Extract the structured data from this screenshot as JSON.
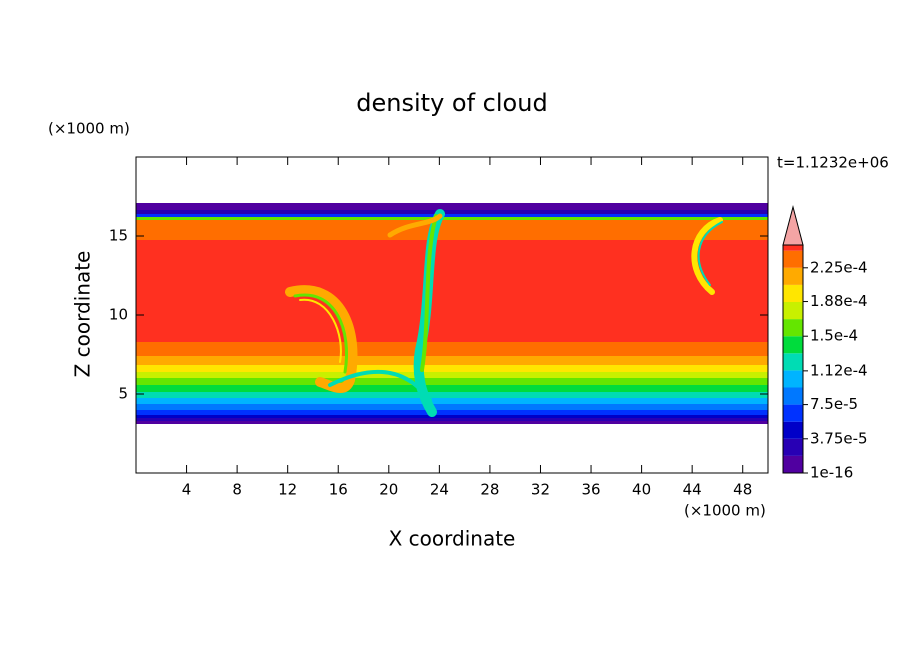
{
  "chart_data": {
    "type": "contour",
    "title": "density of cloud",
    "x_label": "X coordinate",
    "y_label": "Z coordinate",
    "x_unit": "(×1000 m)",
    "y_unit": "(×1000 m)",
    "annotation": "t=1.1232e+06",
    "xlim": [
      0,
      50
    ],
    "ylim": [
      0,
      20
    ],
    "xticks": [
      4,
      8,
      12,
      16,
      20,
      24,
      28,
      32,
      36,
      40,
      44,
      48
    ],
    "yticks": [
      5,
      10,
      15
    ],
    "colorbar": {
      "levels": [
        1e-16,
        1.875e-05,
        3.75e-05,
        5.625e-05,
        7.5e-05,
        9.375e-05,
        0.0001125,
        0.00013125,
        0.00015,
        0.00016875,
        0.0001875,
        0.00020625,
        0.000225,
        0.00024375,
        0.00025
      ],
      "colors": [
        "#5000a0",
        "#2800b4",
        "#0000c8",
        "#0032ff",
        "#0078ff",
        "#00b4ff",
        "#00dcb4",
        "#00dc3c",
        "#64e600",
        "#c8f000",
        "#ffe600",
        "#ffaa00",
        "#ff6e00",
        "#ff3020"
      ],
      "extend_color": "#f4a4a4",
      "ticks": [
        {
          "value": 1e-16,
          "label": "1e-16"
        },
        {
          "value": 3.75e-05,
          "label": "3.75e-5"
        },
        {
          "value": 7.5e-05,
          "label": "7.5e-5"
        },
        {
          "value": 0.000112,
          "label": "1.12e-4"
        },
        {
          "value": 0.00015,
          "label": "1.5e-4"
        },
        {
          "value": 0.000188,
          "label": "1.88e-4"
        },
        {
          "value": 0.000225,
          "label": "2.25e-4"
        }
      ]
    }
  }
}
